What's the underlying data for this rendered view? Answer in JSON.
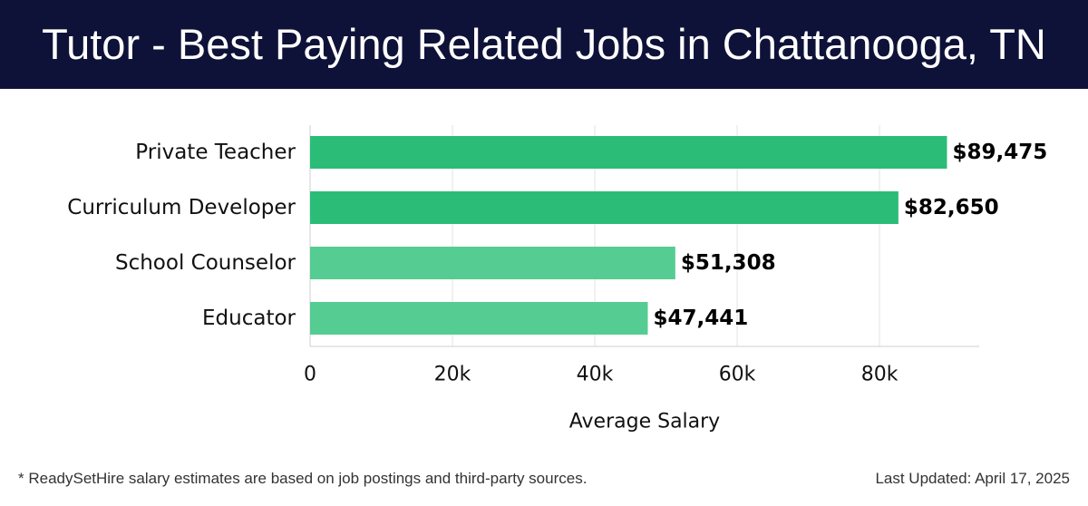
{
  "header": {
    "title": "Tutor - Best Paying Related Jobs in Chattanooga, TN"
  },
  "footer": {
    "note": "* ReadySetHire salary estimates are based on job postings and third-party sources.",
    "updated": "Last Updated: April 17, 2025"
  },
  "colors": {
    "header_bg": "#0f1238",
    "bar_dark": "#2bbd78",
    "bar_light": "#55cc92"
  },
  "chart_data": {
    "type": "bar",
    "orientation": "horizontal",
    "categories": [
      "Private Teacher",
      "Curriculum Developer",
      "School Counselor",
      "Educator"
    ],
    "values": [
      89475,
      82650,
      51308,
      47441
    ],
    "value_labels": [
      "$89,475",
      "$82,650",
      "$51,308",
      "$47,441"
    ],
    "xlabel": "Average Salary",
    "ylabel": "",
    "xlim": [
      0,
      94000
    ],
    "xticks": [
      0,
      20000,
      40000,
      60000,
      80000
    ],
    "xtick_labels": [
      "0",
      "20k",
      "40k",
      "60k",
      "80k"
    ],
    "grid": "vertical",
    "legend": "none"
  }
}
